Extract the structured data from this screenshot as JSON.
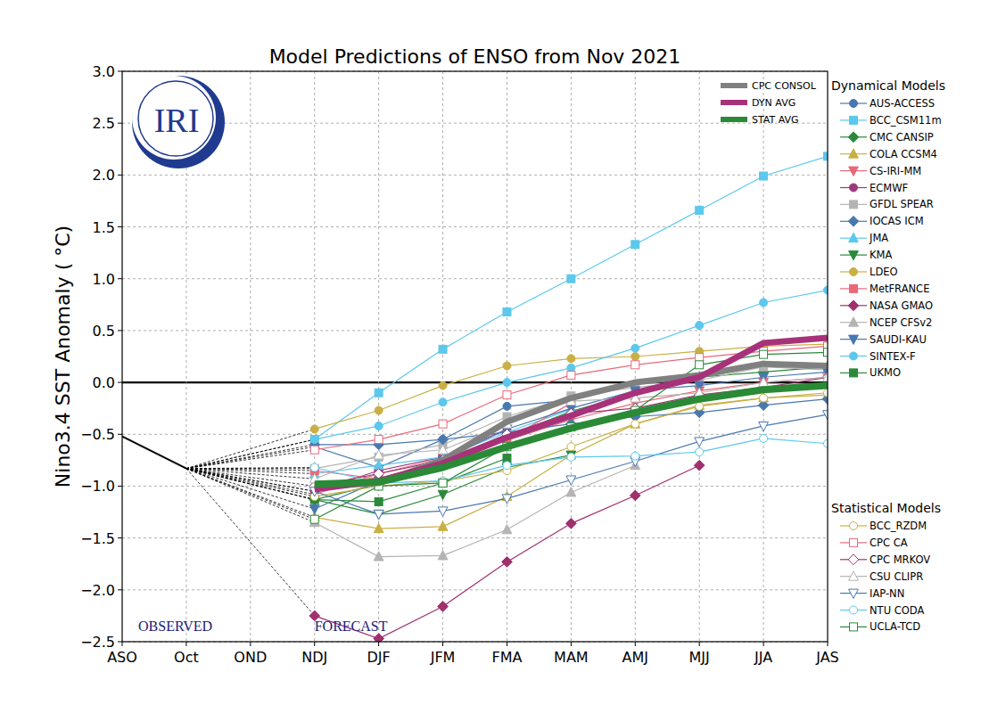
{
  "chart_data": {
    "type": "line",
    "title": "Model Predictions of ENSO from Nov 2021",
    "y_label": "Nino3.4 SST Anomaly ( °C)",
    "logo": "IRI",
    "annotations": [
      "OBSERVED",
      "FORECAST"
    ],
    "categories": [
      "ASO",
      "Oct",
      "OND",
      "NDJ",
      "DJF",
      "JFM",
      "FMA",
      "MAM",
      "AMJ",
      "MJJ",
      "JJA",
      "JAS"
    ],
    "ylim": [
      -2.5,
      3.0
    ],
    "yticks": [
      {
        "value": -2.5,
        "label": "−2.5"
      },
      {
        "value": -2.0,
        "label": "−2.0"
      },
      {
        "value": -1.5,
        "label": "−1.5"
      },
      {
        "value": -1.0,
        "label": "−1.0"
      },
      {
        "value": -0.5,
        "label": "−0.5"
      },
      {
        "value": 0,
        "label": "0.0"
      },
      {
        "value": 0.5,
        "label": "0.5"
      },
      {
        "value": 1.0,
        "label": "1.0"
      },
      {
        "value": 1.5,
        "label": "1.5"
      },
      {
        "value": 2.0,
        "label": "2.0"
      },
      {
        "value": 2.5,
        "label": "2.5"
      },
      {
        "value": 3.0,
        "label": "3.0"
      }
    ],
    "grid": true,
    "legend": "upper right",
    "observed": {
      "color": "#000000",
      "values": [
        -0.52,
        -0.83,
        null,
        null,
        null,
        null,
        null,
        null,
        null,
        null,
        null,
        null
      ]
    },
    "series": [
      {
        "name": "CPC CONSOL",
        "color": "#808080",
        "values": [
          null,
          null,
          null,
          -1.0,
          -0.97,
          -0.75,
          -0.38,
          -0.15,
          0.0,
          0.07,
          0.18,
          0.16
        ]
      },
      {
        "name": "DYN AVG",
        "color": "#a8327a",
        "values": [
          null,
          null,
          null,
          -1.03,
          -0.95,
          -0.78,
          -0.53,
          -0.32,
          -0.1,
          0.05,
          0.38,
          0.43
        ]
      },
      {
        "name": "STAT AVG",
        "color": "#2a8a36",
        "values": [
          null,
          null,
          null,
          -0.98,
          -0.96,
          -0.82,
          -0.62,
          -0.44,
          -0.29,
          -0.16,
          -0.07,
          -0.03
        ]
      }
    ],
    "model_groups": [
      {
        "title": "Dynamical Models",
        "series": [
          {
            "name": "AUS-ACCESS",
            "color": "#4878b0",
            "marker": "circle",
            "values": [
              null,
              null,
              null,
              -0.62,
              -0.82,
              -0.55,
              -0.23,
              -0.17,
              null,
              null,
              null,
              null
            ]
          },
          {
            "name": "BCC_CSM11m",
            "color": "#5bc8ec",
            "marker": "square",
            "values": [
              null,
              null,
              null,
              -0.55,
              -0.1,
              0.32,
              0.68,
              1.0,
              1.33,
              1.66,
              1.99,
              2.18
            ]
          },
          {
            "name": "CMC CANSIP",
            "color": "#2a8a3a",
            "marker": "diamond",
            "values": [
              null,
              null,
              null,
              -1.13,
              -0.98,
              -0.78,
              -0.52,
              -0.28,
              -0.1,
              0.05,
              0.1,
              0.15
            ]
          },
          {
            "name": "COLA CCSM4",
            "color": "#c9b044",
            "marker": "triangle-up",
            "values": [
              null,
              null,
              null,
              -1.3,
              -1.41,
              -1.39,
              -1.1,
              -0.7,
              -0.4,
              -0.22,
              -0.15,
              -0.12
            ]
          },
          {
            "name": "CS-IRI-MM",
            "color": "#e8697a",
            "marker": "triangle-down",
            "values": [
              null,
              null,
              null,
              -1.08,
              -0.88,
              -0.73,
              -0.56,
              -0.36,
              -0.2,
              -0.08,
              0.0,
              0.05
            ]
          },
          {
            "name": "ECMWF",
            "color": "#9b3a7c",
            "marker": "circle",
            "values": [
              null,
              null,
              null,
              -1.05,
              -0.85,
              -0.72,
              -0.45,
              null,
              null,
              null,
              null,
              null
            ]
          },
          {
            "name": "GFDL SPEAR",
            "color": "#b4b4b4",
            "marker": "square",
            "values": [
              null,
              null,
              null,
              -0.83,
              -0.72,
              -0.6,
              -0.33,
              -0.13,
              -0.05,
              0.02,
              0.15,
              0.12
            ]
          },
          {
            "name": "IOCAS ICM",
            "color": "#4878b0",
            "marker": "diamond",
            "values": [
              null,
              null,
              null,
              -0.6,
              -0.6,
              -0.55,
              -0.48,
              -0.4,
              -0.33,
              -0.29,
              -0.22,
              -0.16
            ]
          },
          {
            "name": "JMA",
            "color": "#5bc8ec",
            "marker": "triangle-up",
            "values": [
              null,
              null,
              null,
              -0.88,
              -0.8,
              -0.72,
              -0.48,
              -0.26,
              null,
              null,
              null,
              null
            ]
          },
          {
            "name": "KMA",
            "color": "#2a8a3a",
            "marker": "triangle-down",
            "values": [
              null,
              null,
              null,
              -1.13,
              -1.27,
              -1.08,
              -0.82,
              -0.7,
              null,
              null,
              null,
              null
            ]
          },
          {
            "name": "LDEO",
            "color": "#c9b044",
            "marker": "circle",
            "values": [
              null,
              null,
              null,
              -0.45,
              -0.27,
              -0.03,
              0.16,
              0.23,
              0.25,
              0.3,
              0.35,
              0.37
            ]
          },
          {
            "name": "MetFRANCE",
            "color": "#e8697a",
            "marker": "square",
            "values": [
              null,
              null,
              null,
              -0.85,
              -0.93,
              -0.76,
              -0.55,
              -0.2,
              null,
              null,
              null,
              null
            ]
          },
          {
            "name": "NASA GMAO",
            "color": "#a0306e",
            "marker": "diamond",
            "values": [
              null,
              null,
              null,
              -2.25,
              -2.47,
              -2.16,
              -1.73,
              -1.36,
              -1.09,
              -0.8,
              null,
              null
            ]
          },
          {
            "name": "NCEP CFSv2",
            "color": "#b4b4b4",
            "marker": "triangle-up",
            "values": [
              null,
              null,
              null,
              -1.35,
              -1.68,
              -1.67,
              -1.42,
              -1.06,
              -0.8,
              null,
              null,
              null
            ]
          },
          {
            "name": "SAUDI-KAU",
            "color": "#4878b0",
            "marker": "triangle-down",
            "values": [
              null,
              null,
              null,
              -1.22,
              -0.95,
              -0.75,
              -0.45,
              -0.25,
              -0.08,
              -0.03,
              0.05,
              0.1
            ]
          },
          {
            "name": "SINTEX-F",
            "color": "#5bc8ec",
            "marker": "circle",
            "values": [
              null,
              null,
              null,
              -0.55,
              -0.42,
              -0.19,
              0.0,
              0.14,
              0.33,
              0.55,
              0.77,
              0.89
            ]
          },
          {
            "name": "UKMO",
            "color": "#2a8a3a",
            "marker": "square",
            "values": [
              null,
              null,
              null,
              -1.13,
              -1.15,
              -0.97,
              -0.73,
              null,
              null,
              null,
              null,
              null
            ]
          }
        ]
      },
      {
        "title": "Statistical Models",
        "series": [
          {
            "name": "BCC_RZDM",
            "color": "#c9b044",
            "marker": "open-circle",
            "values": [
              null,
              null,
              null,
              -1.1,
              -1.0,
              -0.95,
              -0.85,
              -0.62,
              -0.4,
              -0.23,
              -0.15,
              -0.1
            ]
          },
          {
            "name": "CPC CA",
            "color": "#e8697a",
            "marker": "open-square",
            "values": [
              null,
              null,
              null,
              -0.65,
              -0.55,
              -0.4,
              -0.12,
              0.07,
              0.17,
              0.24,
              0.3,
              0.35
            ]
          },
          {
            "name": "CPC MRKOV",
            "color": "#a0306e",
            "marker": "open-diamond",
            "values": [
              null,
              null,
              null,
              -1.0,
              -0.88,
              -0.75,
              -0.5,
              -0.3,
              -0.25,
              -0.12,
              -0.05,
              0.05
            ]
          },
          {
            "name": "CSU CLIPR",
            "color": "#b4b4b4",
            "marker": "open-triangle-up",
            "values": [
              null,
              null,
              null,
              -0.93,
              -0.7,
              -0.65,
              -0.4,
              -0.18,
              -0.15,
              -0.1,
              0.0,
              0.05
            ]
          },
          {
            "name": "IAP-NN",
            "color": "#4878b0",
            "marker": "open-triangle-down",
            "values": [
              null,
              null,
              null,
              -1.05,
              -1.27,
              -1.24,
              -1.12,
              -0.94,
              -0.76,
              -0.57,
              -0.42,
              -0.31
            ]
          },
          {
            "name": "NTU CODA",
            "color": "#5bc8ec",
            "marker": "open-circle",
            "values": [
              null,
              null,
              null,
              -0.82,
              -0.97,
              -0.95,
              -0.8,
              -0.72,
              -0.71,
              -0.67,
              -0.54,
              -0.59
            ]
          },
          {
            "name": "UCLA-TCD",
            "color": "#2a8a3a",
            "marker": "open-square",
            "values": [
              null,
              null,
              null,
              -1.32,
              -1.0,
              -0.97,
              -0.62,
              -0.43,
              -0.27,
              0.17,
              0.27,
              0.29
            ]
          }
        ]
      }
    ]
  }
}
